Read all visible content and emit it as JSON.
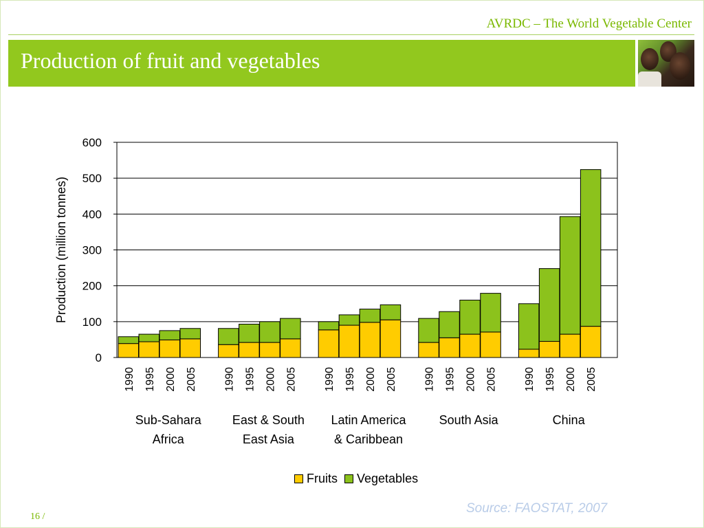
{
  "header": {
    "org": "AVRDC – The World Vegetable Center",
    "title": "Production of fruit and vegetables"
  },
  "footer": {
    "source": "Source: FAOSTAT, 2007",
    "page": "16 /"
  },
  "colors": {
    "fruits": "#ffcc00",
    "vegetables": "#8cc21c",
    "title_bar": "#92c81e",
    "accent_text": "#7ab800"
  },
  "chart_data": {
    "type": "bar",
    "stacked": true,
    "title": "",
    "ylabel": "Production (million tonnes)",
    "xlabel": "",
    "ylim": [
      0,
      600
    ],
    "yticks": [
      0,
      100,
      200,
      300,
      400,
      500,
      600
    ],
    "grid": true,
    "legend": "bottom-center",
    "groups": [
      {
        "label": [
          "Sub-Sahara",
          "Africa"
        ],
        "years": [
          "1990",
          "1995",
          "2000",
          "2005"
        ],
        "fruits": [
          39,
          44,
          49,
          52
        ],
        "vegetables": [
          19,
          21,
          26,
          29
        ]
      },
      {
        "label": [
          "East & South",
          "East Asia"
        ],
        "years": [
          "1990",
          "1995",
          "2000",
          "2005"
        ],
        "fruits": [
          36,
          42,
          42,
          52
        ],
        "vegetables": [
          45,
          51,
          58,
          57
        ]
      },
      {
        "label": [
          "Latin America",
          "& Caribbean"
        ],
        "years": [
          "1990",
          "1995",
          "2000",
          "2005"
        ],
        "fruits": [
          77,
          90,
          98,
          105
        ],
        "vegetables": [
          23,
          29,
          37,
          42
        ]
      },
      {
        "label": [
          "South Asia",
          ""
        ],
        "years": [
          "1990",
          "1995",
          "2000",
          "2005"
        ],
        "fruits": [
          42,
          55,
          65,
          71
        ],
        "vegetables": [
          67,
          73,
          95,
          108
        ]
      },
      {
        "label": [
          "China",
          ""
        ],
        "years": [
          "1990",
          "1995",
          "2000",
          "2005"
        ],
        "fruits": [
          23,
          45,
          65,
          87
        ],
        "vegetables": [
          127,
          203,
          328,
          437
        ]
      }
    ],
    "series": [
      {
        "name": "Fruits",
        "key": "fruits"
      },
      {
        "name": "Vegetables",
        "key": "vegetables"
      }
    ]
  }
}
